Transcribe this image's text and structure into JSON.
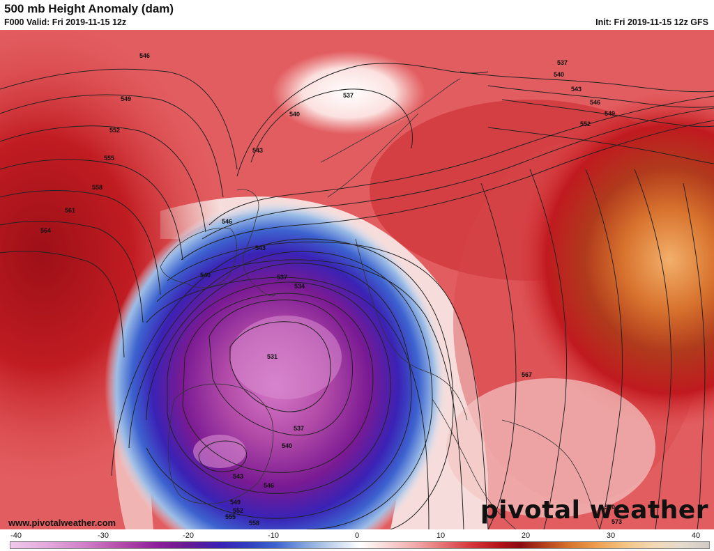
{
  "header": {
    "title": "500 mb Height Anomaly (dam)",
    "valid": "F000 Valid: Fri 2019-11-15 12z",
    "init": "Init: Fri 2019-11-15 12z GFS"
  },
  "footer": {
    "website": "www.pivotalweather.com",
    "brand": "pivotal weather"
  },
  "colorbar": {
    "ticks": [
      "-40",
      "-30",
      "-20",
      "-10",
      "0",
      "10",
      "20",
      "30",
      "40"
    ]
  },
  "contour_labels": {
    "l546a": "546",
    "l549a": "549",
    "l552a": "552",
    "l555": "555",
    "l558": "558",
    "l561": "561",
    "l564": "564",
    "l537n": "537",
    "l540n": "540",
    "l543n": "543",
    "l546b": "546",
    "l543b": "543",
    "l540b": "540",
    "l537b": "537",
    "l534": "534",
    "l531": "531",
    "l537c": "537",
    "l540c": "540",
    "l543c": "543",
    "l546c": "546",
    "l549b": "549",
    "l552b": "552",
    "l555b": "555",
    "l558b": "558",
    "e537": "537",
    "e540": "540",
    "e543": "543",
    "e546": "546",
    "e549": "549",
    "e552": "552",
    "l567": "567",
    "l570": "570",
    "l573": "573"
  },
  "colors": {
    "strong_positive": "#b3121a",
    "positive": "#e2575d",
    "weak_positive": "#f2b7b5",
    "neutral": "#ffffff",
    "weak_negative": "#a9c4e4",
    "negative": "#2f3fbf",
    "strong_negative": "#7a1a93",
    "extreme_negative": "#c75bbd",
    "extreme_positive": "#d8732e"
  },
  "map": {
    "region": "North Atlantic and Europe",
    "field": "500 mb Height Anomaly",
    "features": [
      "negative anomaly over Iberia and Bay of Biscay",
      "positive anomaly over Atlantic and eastern Europe"
    ]
  }
}
